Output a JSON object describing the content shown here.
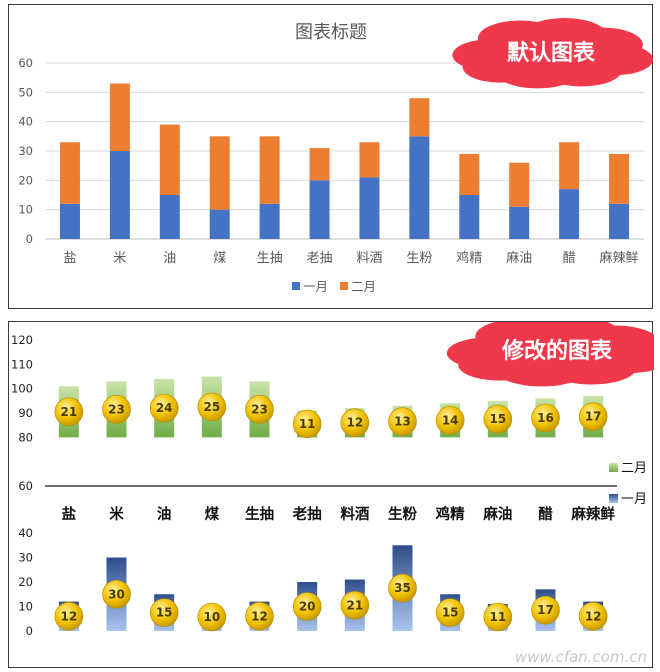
{
  "panels": {
    "default_label": "默认图表",
    "modified_label": "修改的图表"
  },
  "watermark": "www.cfan.com.cn",
  "colors": {
    "jan_default": "#4472C4",
    "feb_default": "#ED7D31",
    "jan_modified": "#2E4E8C",
    "feb_modified": "#70AD47",
    "bubble": "#F2C200",
    "cloud": "#F0384B"
  },
  "chart_data": [
    {
      "type": "bar",
      "stacked": true,
      "title": "图表标题",
      "categories": [
        "盐",
        "米",
        "油",
        "煤",
        "生抽",
        "老抽",
        "料酒",
        "生粉",
        "鸡精",
        "麻油",
        "醋",
        "麻辣鲜"
      ],
      "series": [
        {
          "name": "一月",
          "values": [
            12,
            30,
            15,
            10,
            12,
            20,
            21,
            35,
            15,
            11,
            17,
            12
          ]
        },
        {
          "name": "二月",
          "values": [
            21,
            23,
            24,
            25,
            23,
            11,
            12,
            13,
            14,
            15,
            16,
            17
          ]
        }
      ],
      "yticks": [
        0,
        10,
        20,
        30,
        40,
        50,
        60
      ],
      "ylim": [
        0,
        60
      ],
      "grid": true,
      "legend": "bottom"
    },
    {
      "type": "bar",
      "title": "",
      "categories": [
        "盐",
        "米",
        "油",
        "煤",
        "生抽",
        "老抽",
        "料酒",
        "生粉",
        "鸡精",
        "麻油",
        "醋",
        "麻辣鲜"
      ],
      "series": [
        {
          "name": "一月",
          "values": [
            12,
            30,
            15,
            10,
            12,
            20,
            21,
            35,
            15,
            11,
            17,
            12
          ]
        },
        {
          "name": "二月",
          "values": [
            21,
            23,
            24,
            25,
            23,
            11,
            12,
            13,
            14,
            15,
            16,
            17
          ]
        }
      ],
      "yticks": [
        0,
        10,
        20,
        30,
        40,
        60,
        80,
        90,
        100,
        110,
        120
      ],
      "ylim": [
        0,
        120
      ],
      "grid": false,
      "legend": "right"
    }
  ]
}
